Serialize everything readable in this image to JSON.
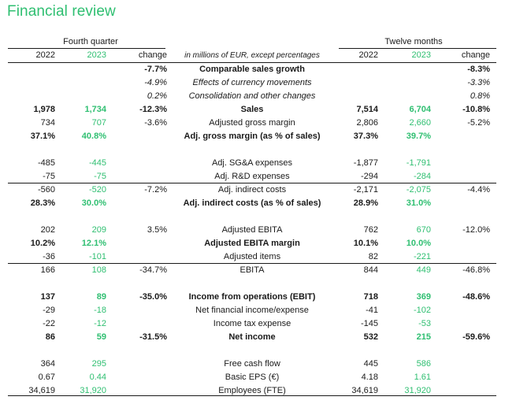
{
  "title": "Financial review",
  "periods": {
    "quarter": "Fourth quarter",
    "twelve": "Twelve months"
  },
  "headers": {
    "q_2022": "2022",
    "q_2023": "2023",
    "q_change": "change",
    "description": "in millions of EUR, except percentages",
    "y_2022": "2022",
    "y_2023": "2023",
    "y_change": "change"
  },
  "colors": {
    "accent": "#2fbf71",
    "text": "#1a1a1a"
  },
  "rows": [
    {
      "q22": "",
      "q23": "",
      "qc": "-7.7%",
      "label": "Comparable sales growth",
      "y22": "",
      "y23": "",
      "yc": "-8.3%",
      "bold": true,
      "italic": false
    },
    {
      "q22": "",
      "q23": "",
      "qc": "-4.9%",
      "label": "Effects of currency movements",
      "y22": "",
      "y23": "",
      "yc": "-3.3%",
      "bold": false,
      "italic": true
    },
    {
      "q22": "",
      "q23": "",
      "qc": "0.2%",
      "label": "Consolidation and other changes",
      "y22": "",
      "y23": "",
      "yc": "0.8%",
      "bold": false,
      "italic": true
    },
    {
      "q22": "1,978",
      "q23": "1,734",
      "qc": "-12.3%",
      "label": "Sales",
      "y22": "7,514",
      "y23": "6,704",
      "yc": "-10.8%",
      "bold": true,
      "italic": false
    },
    {
      "q22": "734",
      "q23": "707",
      "qc": "-3.6%",
      "label": "Adjusted gross margin",
      "y22": "2,806",
      "y23": "2,660",
      "yc": "-5.2%",
      "bold": false,
      "italic": false
    },
    {
      "q22": "37.1%",
      "q23": "40.8%",
      "qc": "",
      "label": "Adj. gross margin (as % of sales)",
      "y22": "37.3%",
      "y23": "39.7%",
      "yc": "",
      "bold": true,
      "italic": false
    },
    {
      "q22": "-485",
      "q23": "-445",
      "qc": "",
      "label": "Adj. SG&A expenses",
      "y22": "-1,877",
      "y23": "-1,791",
      "yc": "",
      "bold": false,
      "italic": false
    },
    {
      "q22": "-75",
      "q23": "-75",
      "qc": "",
      "label": "Adj. R&D expenses",
      "y22": "-294",
      "y23": "-284",
      "yc": "",
      "bold": false,
      "italic": false
    },
    {
      "q22": "-560",
      "q23": "-520",
      "qc": "-7.2%",
      "label": "Adj. indirect costs",
      "y22": "-2,171",
      "y23": "-2,075",
      "yc": "-4.4%",
      "bold": false,
      "italic": false
    },
    {
      "q22": "28.3%",
      "q23": "30.0%",
      "qc": "",
      "label": "Adj. indirect costs (as % of sales)",
      "y22": "28.9%",
      "y23": "31.0%",
      "yc": "",
      "bold": true,
      "italic": false
    },
    {
      "q22": "202",
      "q23": "209",
      "qc": "3.5%",
      "label": "Adjusted EBITA",
      "y22": "762",
      "y23": "670",
      "yc": "-12.0%",
      "bold": false,
      "italic": false
    },
    {
      "q22": "10.2%",
      "q23": "12.1%",
      "qc": "",
      "label": "Adjusted EBITA margin",
      "y22": "10.1%",
      "y23": "10.0%",
      "yc": "",
      "bold": true,
      "italic": false
    },
    {
      "q22": "-36",
      "q23": "-101",
      "qc": "",
      "label": "Adjusted items",
      "y22": "82",
      "y23": "-221",
      "yc": "",
      "bold": false,
      "italic": false
    },
    {
      "q22": "166",
      "q23": "108",
      "qc": "-34.7%",
      "label": "EBITA",
      "y22": "844",
      "y23": "449",
      "yc": "-46.8%",
      "bold": false,
      "italic": false
    },
    {
      "q22": "137",
      "q23": "89",
      "qc": "-35.0%",
      "label": "Income from operations (EBIT)",
      "y22": "718",
      "y23": "369",
      "yc": "-48.6%",
      "bold": true,
      "italic": false
    },
    {
      "q22": "-29",
      "q23": "-18",
      "qc": "",
      "label": "Net financial income/expense",
      "y22": "-41",
      "y23": "-102",
      "yc": "",
      "bold": false,
      "italic": false
    },
    {
      "q22": "-22",
      "q23": "-12",
      "qc": "",
      "label": "Income tax expense",
      "y22": "-145",
      "y23": "-53",
      "yc": "",
      "bold": false,
      "italic": false
    },
    {
      "q22": "86",
      "q23": "59",
      "qc": "-31.5%",
      "label": "Net income",
      "y22": "532",
      "y23": "215",
      "yc": "-59.6%",
      "bold": true,
      "italic": false
    },
    {
      "q22": "364",
      "q23": "295",
      "qc": "",
      "label": "Free cash flow",
      "y22": "445",
      "y23": "586",
      "yc": "",
      "bold": false,
      "italic": false
    },
    {
      "q22": "0.67",
      "q23": "0.44",
      "qc": "",
      "label": "Basic EPS (€)",
      "y22": "4.18",
      "y23": "1.61",
      "yc": "",
      "bold": false,
      "italic": false
    },
    {
      "q22": "34,619",
      "q23": "31,920",
      "qc": "",
      "label": "Employees (FTE)",
      "y22": "34,619",
      "y23": "31,920",
      "yc": "",
      "bold": false,
      "italic": false
    }
  ]
}
